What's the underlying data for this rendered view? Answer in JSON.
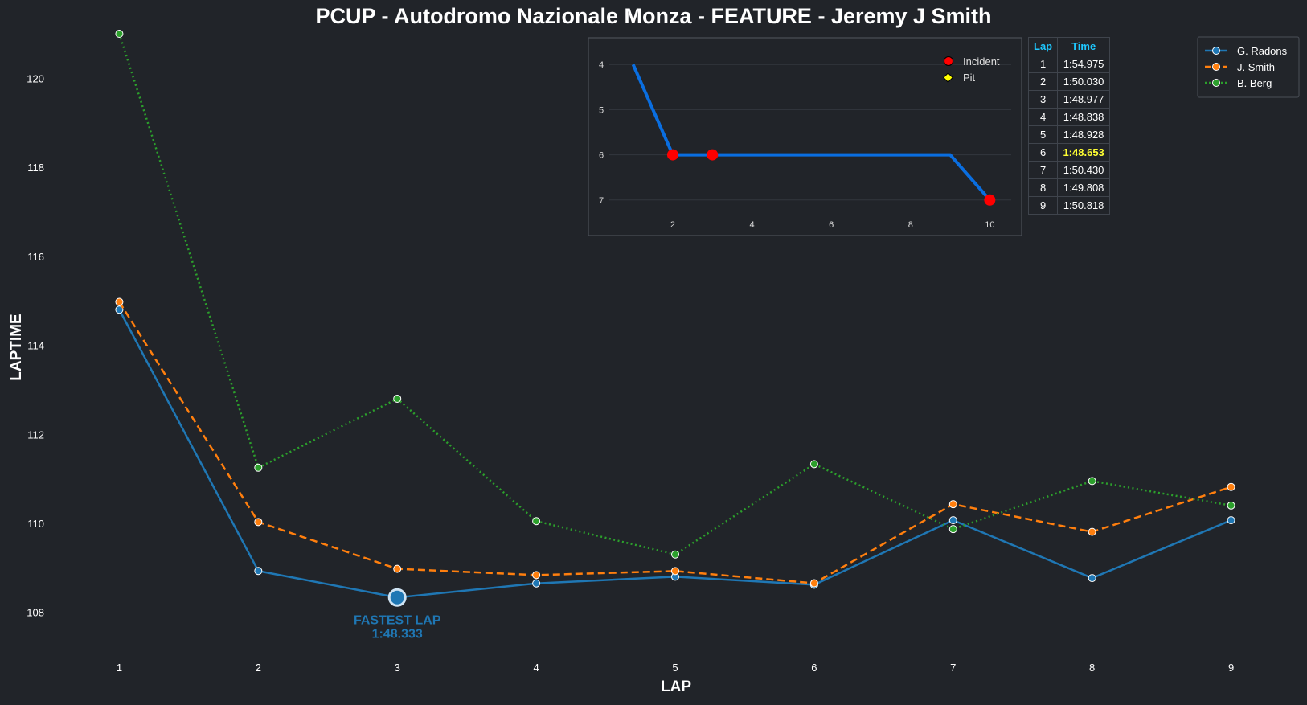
{
  "title": "PCUP - Autodromo Nazionale Monza - FEATURE - Jeremy J Smith",
  "chart_data": [
    {
      "type": "line",
      "xlabel": "LAP",
      "ylabel": "LAPTIME",
      "x": [
        1,
        2,
        3,
        4,
        5,
        6,
        7,
        8,
        9
      ],
      "xlim": [
        0.5,
        9.5
      ],
      "ylim": [
        107.2,
        121.0
      ],
      "y_ticks": [
        108,
        110,
        112,
        114,
        116,
        118,
        120
      ],
      "grid": false,
      "legend": "top-right",
      "series": [
        {
          "name": "G. Radons",
          "color": "#1f77b4",
          "style": "solid",
          "values": [
            114.8,
            108.93,
            108.333,
            108.65,
            108.8,
            108.62,
            110.07,
            108.77,
            110.07
          ]
        },
        {
          "name": "J. Smith",
          "color": "#ff7f0e",
          "style": "dashed",
          "values": [
            114.975,
            110.03,
            108.977,
            108.838,
            108.928,
            108.653,
            110.43,
            109.808,
            110.818
          ]
        },
        {
          "name": "B. Berg",
          "color": "#2ca02c",
          "style": "dotted",
          "values": [
            121.0,
            111.25,
            112.8,
            110.05,
            109.3,
            111.33,
            109.87,
            110.95,
            110.4
          ]
        }
      ],
      "annotation": {
        "x": 3,
        "y": 108.333,
        "label": "FASTEST LAP",
        "value": "1:48.333",
        "color": "#1f77b4"
      }
    },
    {
      "type": "line",
      "x": [
        1,
        2,
        3,
        4,
        5,
        6,
        7,
        8,
        9,
        10
      ],
      "values": [
        4,
        6,
        6,
        6,
        6,
        6,
        6,
        6,
        6,
        7
      ],
      "xlim": [
        0.5,
        10.5
      ],
      "ylim": [
        7.2,
        3.8
      ],
      "x_ticks": [
        2,
        4,
        6,
        8,
        10
      ],
      "y_ticks": [
        4,
        5,
        6,
        7
      ],
      "inverted_y": true,
      "line_color": "#0a6ee0",
      "incidents": [
        {
          "x": 2,
          "y": 6
        },
        {
          "x": 3,
          "y": 6
        },
        {
          "x": 10,
          "y": 7
        }
      ],
      "pits": [],
      "legend": [
        {
          "label": "Incident",
          "marker": "circle",
          "color": "#ff0000"
        },
        {
          "label": "Pit",
          "marker": "diamond",
          "color": "#ffff00"
        }
      ]
    }
  ],
  "lap_table": {
    "headers": [
      "Lap",
      "Time"
    ],
    "rows": [
      {
        "lap": "1",
        "time": "1:54.975",
        "best": false
      },
      {
        "lap": "2",
        "time": "1:50.030",
        "best": false
      },
      {
        "lap": "3",
        "time": "1:48.977",
        "best": false
      },
      {
        "lap": "4",
        "time": "1:48.838",
        "best": false
      },
      {
        "lap": "5",
        "time": "1:48.928",
        "best": false
      },
      {
        "lap": "6",
        "time": "1:48.653",
        "best": true
      },
      {
        "lap": "7",
        "time": "1:50.430",
        "best": false
      },
      {
        "lap": "8",
        "time": "1:49.808",
        "best": false
      },
      {
        "lap": "9",
        "time": "1:50.818",
        "best": false
      }
    ]
  },
  "colors": {
    "background": "#212429",
    "table_header": "#1ec8ff",
    "best_lap": "#ffff33"
  }
}
